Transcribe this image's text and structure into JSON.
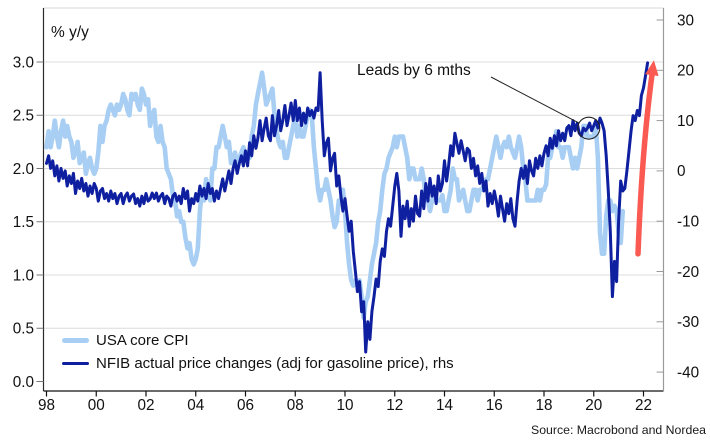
{
  "chart": {
    "left_axis_title": "% y/y",
    "annotation_text": "Leads by 6 mths",
    "source": "Source: Macrobond and Nordea",
    "legend": [
      {
        "label": "USA core CPI",
        "color": "#A8CFF3"
      },
      {
        "label": "NFIB actual price changes (adj for gasoline price), rhs",
        "color": "#0E1FA0"
      }
    ]
  },
  "chart_data": {
    "type": "line",
    "title": "",
    "grid": "on",
    "legend_position": "bottom-left-inside",
    "x_axis": {
      "tick_labels": [
        "98",
        "00",
        "02",
        "04",
        "06",
        "08",
        "10",
        "12",
        "14",
        "16",
        "18",
        "20",
        "22"
      ],
      "tick_years": [
        1998,
        2000,
        2002,
        2004,
        2006,
        2008,
        2010,
        2012,
        2014,
        2016,
        2018,
        2020,
        2022
      ],
      "range": [
        1997.85,
        2022.7
      ]
    },
    "left_axis": {
      "title": "% y/y",
      "tick_labels": [
        "0.0",
        "0.5",
        "1.0",
        "1.5",
        "2.0",
        "2.5",
        "3.0"
      ],
      "tick_values": [
        0.0,
        0.5,
        1.0,
        1.5,
        2.0,
        2.5,
        3.0
      ],
      "range": [
        -0.09,
        3.51
      ]
    },
    "right_axis": {
      "tick_labels": [
        "-40",
        "-30",
        "-20",
        "-10",
        "0",
        "10",
        "20",
        "30"
      ],
      "tick_values": [
        -40,
        -30,
        -20,
        -10,
        0,
        10,
        20,
        30
      ],
      "range": [
        -44.3,
        32.4
      ],
      "gridline_values": [
        3.0,
        2.5,
        2.0,
        1.5,
        1.0,
        0.5
      ]
    },
    "series": [
      {
        "name": "USA core CPI",
        "axis": "left",
        "color": "#A8CFF3",
        "stroke_width": 4.6,
        "start_year": 1998,
        "monthly_values": [
          2.2,
          2.35,
          2.2,
          2.3,
          2.45,
          2.3,
          2.2,
          2.35,
          2.45,
          2.3,
          2.4,
          2.3,
          2.25,
          2.1,
          2.15,
          2.25,
          2.05,
          2.1,
          2.15,
          1.95,
          2.05,
          2.1,
          2.0,
          1.95,
          2.0,
          2.15,
          2.4,
          2.25,
          2.4,
          2.45,
          2.55,
          2.6,
          2.55,
          2.5,
          2.6,
          2.55,
          2.6,
          2.7,
          2.65,
          2.55,
          2.5,
          2.7,
          2.65,
          2.7,
          2.6,
          2.55,
          2.75,
          2.7,
          2.6,
          2.65,
          2.4,
          2.5,
          2.55,
          2.3,
          2.25,
          2.4,
          2.25,
          2.2,
          2.0,
          1.95,
          1.9,
          1.75,
          1.7,
          1.55,
          1.6,
          1.5,
          1.5,
          1.35,
          1.25,
          1.3,
          1.15,
          1.1,
          1.15,
          1.25,
          1.6,
          1.8,
          1.7,
          1.9,
          1.8,
          1.7,
          2.0,
          2.0,
          2.2,
          2.2,
          2.3,
          2.4,
          2.3,
          2.2,
          2.25,
          2.05,
          2.1,
          2.15,
          2.0,
          2.1,
          2.15,
          2.2,
          2.1,
          2.15,
          2.1,
          2.3,
          2.4,
          2.6,
          2.7,
          2.8,
          2.9,
          2.75,
          2.6,
          2.65,
          2.7,
          2.75,
          2.5,
          2.35,
          2.25,
          2.2,
          2.25,
          2.1,
          2.1,
          2.2,
          2.3,
          2.4,
          2.5,
          2.3,
          2.4,
          2.3,
          2.3,
          2.4,
          2.5,
          2.55,
          2.5,
          2.2,
          2.0,
          1.8,
          1.7,
          1.8,
          1.8,
          1.9,
          1.8,
          1.7,
          1.55,
          1.45,
          1.5,
          1.7,
          1.7,
          1.8,
          1.6,
          1.3,
          1.1,
          0.95,
          0.9,
          0.95,
          0.9,
          0.95,
          0.8,
          0.6,
          0.75,
          0.8,
          0.95,
          1.1,
          1.2,
          1.3,
          1.5,
          1.6,
          1.8,
          1.95,
          2.0,
          2.1,
          2.15,
          2.2,
          2.3,
          2.2,
          2.3,
          2.3,
          2.3,
          2.2,
          2.1,
          1.9,
          2.0,
          2.0,
          1.9,
          1.9,
          1.9,
          2.0,
          1.9,
          1.7,
          1.7,
          1.6,
          1.7,
          1.8,
          1.7,
          1.7,
          1.7,
          1.75,
          1.6,
          1.6,
          1.7,
          1.8,
          2.0,
          1.9,
          1.9,
          1.7,
          1.75,
          1.8,
          1.7,
          1.6,
          1.6,
          1.7,
          1.8,
          1.8,
          1.7,
          1.8,
          1.8,
          1.85,
          1.9,
          1.9,
          2.0,
          2.1,
          2.2,
          2.3,
          2.2,
          2.1,
          2.2,
          2.25,
          2.2,
          2.3,
          2.2,
          2.15,
          2.1,
          2.2,
          2.3,
          2.2,
          2.0,
          1.9,
          1.7,
          1.7,
          1.7,
          1.7,
          1.7,
          1.8,
          1.7,
          1.8,
          1.8,
          1.85,
          2.1,
          2.1,
          2.2,
          2.25,
          2.35,
          2.2,
          2.2,
          2.1,
          2.2,
          2.2,
          2.2,
          2.1,
          2.0,
          2.1,
          2.0,
          2.1,
          2.2,
          2.4,
          2.4,
          2.3,
          2.3,
          2.3,
          2.3,
          2.4,
          2.1,
          1.4,
          1.2,
          1.2,
          1.55,
          1.7,
          1.7,
          1.6,
          1.65,
          1.6,
          1.4,
          1.3,
          1.6
        ]
      },
      {
        "name": "NFIB actual price changes (adj for gasoline price), rhs",
        "axis": "right",
        "color": "#0E1FA0",
        "stroke_width": 3,
        "start_year": 1998,
        "monthly_values": [
          1.5,
          3,
          0.5,
          2,
          -1,
          1,
          -2,
          0.5,
          -1.5,
          0,
          -3,
          -1,
          -2.5,
          -0.5,
          -4.5,
          -2,
          -3.5,
          -1.5,
          -4,
          -2.5,
          -5,
          -3,
          -4.5,
          -2.5,
          -3.5,
          -6,
          -4,
          -3.5,
          -5.5,
          -4.5,
          -6,
          -4,
          -5.5,
          -4.5,
          -6.5,
          -5,
          -4.5,
          -6.5,
          -5,
          -4.4,
          -6,
          -5,
          -4.6,
          -6.5,
          -5.5,
          -7,
          -5,
          -6.5,
          -4.5,
          -6,
          -5.6,
          -4.4,
          -5.5,
          -4.4,
          -6,
          -5,
          -4.5,
          -6.5,
          -5,
          -5.5,
          -7,
          -5,
          -4.5,
          -6,
          -5,
          -6.5,
          -3.5,
          -5.5,
          -4,
          -8,
          -5.5,
          -6.5,
          -4.5,
          -6,
          -3,
          -5,
          -3.5,
          -5.5,
          -2.5,
          -4.5,
          -3.5,
          -6,
          -4,
          -5.5,
          -3.5,
          -1.6,
          -4,
          -2,
          0,
          -2.5,
          0.5,
          2,
          -0.5,
          1.5,
          3,
          1,
          4,
          1,
          5.6,
          3,
          7,
          4.5,
          6.5,
          10,
          6,
          8.5,
          10.5,
          7,
          6,
          11,
          7,
          9,
          12,
          8,
          10,
          13,
          9,
          11,
          13.5,
          10,
          14,
          10,
          12.5,
          9,
          11.5,
          9.5,
          12.5,
          11,
          12,
          10.5,
          12.5,
          12,
          19.5,
          10,
          3,
          5.5,
          6.5,
          0,
          2.5,
          3.5,
          -3,
          -1,
          -5,
          -8,
          -5.5,
          -9,
          -12,
          -10,
          -16,
          -20,
          -24,
          -22,
          -28,
          -26,
          -36,
          -30,
          -33.5,
          -28,
          -25,
          -21.5,
          -23,
          -18,
          -15.5,
          -17,
          -12,
          -9.5,
          -11,
          -7,
          -3,
          -0.5,
          -4,
          -13,
          -7,
          -9.5,
          -6,
          -11,
          -7.5,
          -10,
          -5,
          -8.5,
          -9,
          -4,
          -7.5,
          -2.5,
          -6,
          -1.5,
          -5,
          -3,
          -6.5,
          -1,
          -4,
          -2.5,
          2,
          -2,
          1,
          5,
          3,
          7.5,
          5.5,
          3.5,
          6,
          4,
          2,
          4.5,
          4,
          0.5,
          2.5,
          -1,
          1,
          -2.5,
          -0.5,
          -4,
          -2,
          -7,
          -4.5,
          -6.5,
          -4,
          -6,
          -9,
          -5,
          -7.5,
          -10,
          -6.5,
          -8.5,
          -5.5,
          -9.5,
          -11,
          -6,
          -2,
          0.5,
          -1.5,
          1,
          -2.5,
          2,
          0,
          -1,
          2.5,
          0.5,
          3,
          1,
          3.5,
          5,
          3,
          6.5,
          4.5,
          7,
          5,
          8,
          6,
          7.5,
          6,
          8.5,
          9,
          7,
          10,
          8,
          9.5,
          7.5,
          7,
          8.5,
          8,
          8.5,
          9.5,
          8,
          9,
          10,
          8.5,
          10.5,
          9.5,
          8,
          3,
          -4,
          -12,
          -25,
          -18,
          -22,
          -10,
          -2,
          -4,
          -3.5,
          0,
          4,
          8,
          11,
          10,
          12,
          11,
          15,
          16.5,
          19,
          21.5
        ]
      }
    ],
    "annotation": {
      "text": "Leads by 6 mths",
      "points_to_year": 2019.8,
      "points_to_value_rhs": 8.5
    },
    "trend_arrow": {
      "color": "#FA5A52",
      "from": {
        "year": 2021.78,
        "value_rhs": -16.5
      },
      "to": {
        "year": 2022.42,
        "value_rhs": 22
      }
    }
  }
}
